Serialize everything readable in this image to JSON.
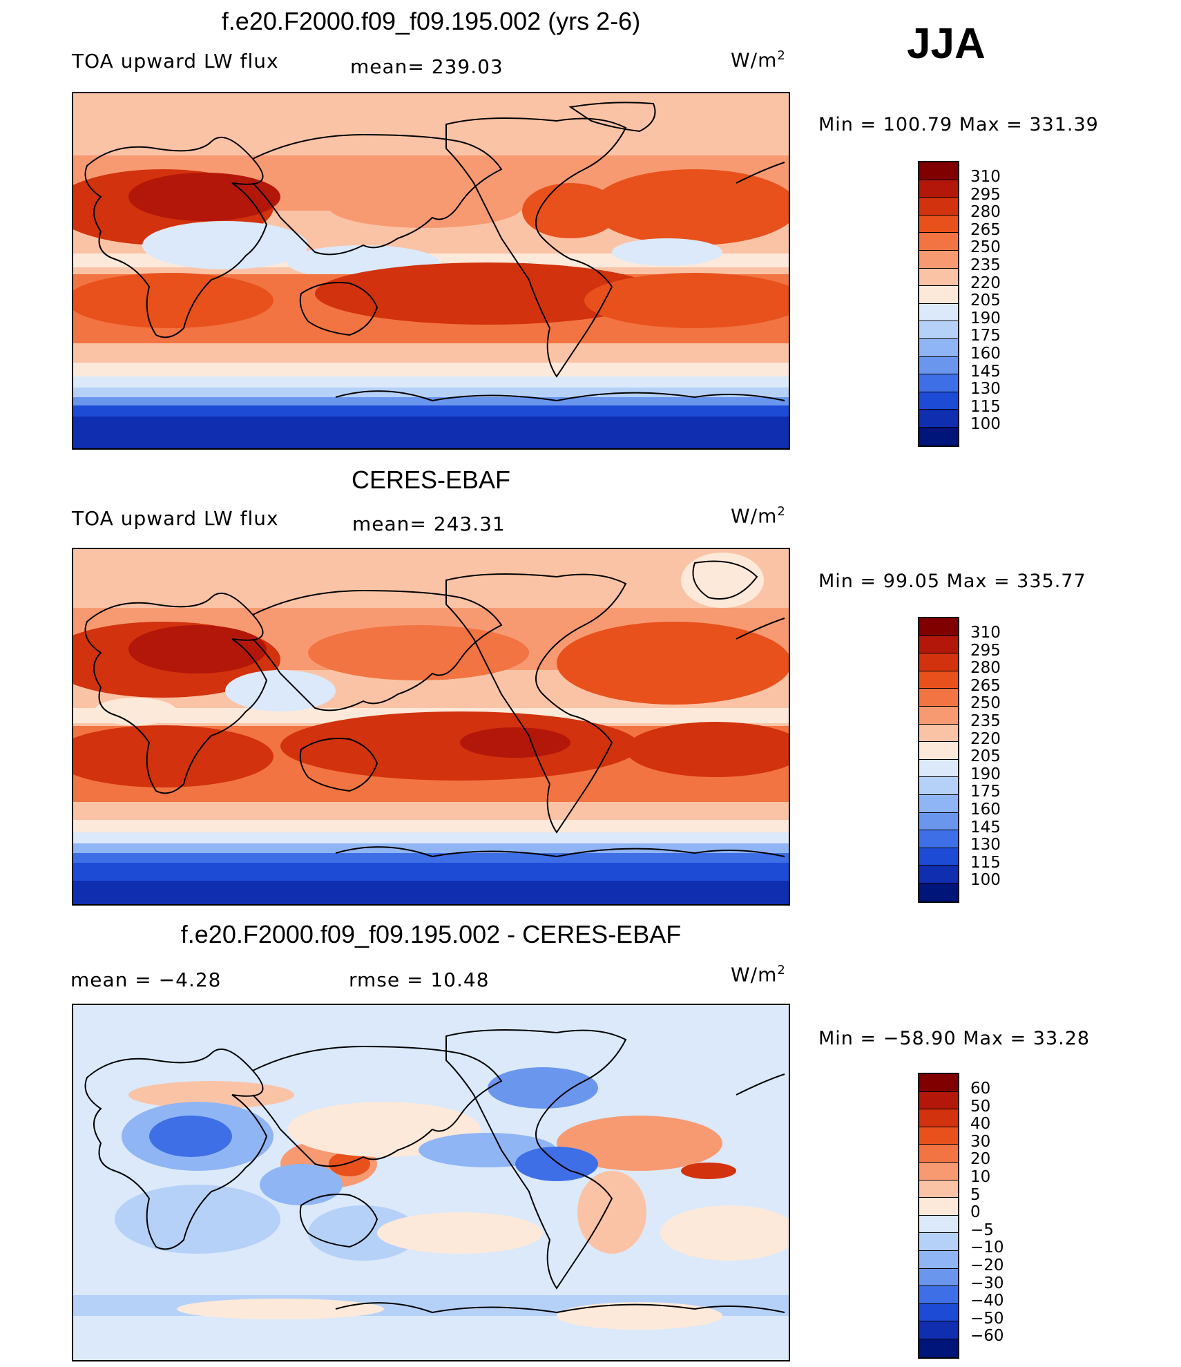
{
  "season": "JJA",
  "panels": [
    {
      "title": "f.e20.F2000.f09_f09.195.002 (yrs 2-6)",
      "left_label": "TOA upward LW flux",
      "center_label": "mean= 239.03",
      "units_base": "W/m",
      "units_exp": "2",
      "minmax": "Min  =  100.79  Max  =  331.39",
      "colorbar_labels": [
        "310",
        "295",
        "280",
        "265",
        "250",
        "235",
        "220",
        "205",
        "190",
        "175",
        "160",
        "145",
        "130",
        "115",
        "100"
      ],
      "colorbar_colors": [
        "#800000",
        "#b3170a",
        "#d2320d",
        "#e8511c",
        "#f27442",
        "#f79a72",
        "#fbc3a6",
        "#fde9da",
        "#dbe9fb",
        "#b6d1f8",
        "#90b5f4",
        "#6a96ee",
        "#3f6fe6",
        "#1e4bd6",
        "#0f2eb0",
        "#00157a"
      ]
    },
    {
      "title": "CERES-EBAF",
      "left_label": "TOA upward LW flux",
      "center_label": "mean= 243.31",
      "units_base": "W/m",
      "units_exp": "2",
      "minmax": "Min  =   99.05  Max  =  335.77",
      "colorbar_labels": [
        "310",
        "295",
        "280",
        "265",
        "250",
        "235",
        "220",
        "205",
        "190",
        "175",
        "160",
        "145",
        "130",
        "115",
        "100"
      ],
      "colorbar_colors": [
        "#800000",
        "#b3170a",
        "#d2320d",
        "#e8511c",
        "#f27442",
        "#f79a72",
        "#fbc3a6",
        "#fde9da",
        "#dbe9fb",
        "#b6d1f8",
        "#90b5f4",
        "#6a96ee",
        "#3f6fe6",
        "#1e4bd6",
        "#0f2eb0",
        "#00157a"
      ]
    },
    {
      "title": "f.e20.F2000.f09_f09.195.002 - CERES-EBAF",
      "left_label": "mean  =    −4.28",
      "center_label": "rmse  =    10.48",
      "units_base": "W/m",
      "units_exp": "2",
      "minmax": "Min  =  −58.90  Max  =    33.28",
      "colorbar_labels": [
        "60",
        "50",
        "40",
        "30",
        "20",
        "10",
        "5",
        "0",
        "−5",
        "−10",
        "−20",
        "−30",
        "−40",
        "−50",
        "−60"
      ],
      "colorbar_colors": [
        "#800000",
        "#b3170a",
        "#d2320d",
        "#e8511c",
        "#f27442",
        "#f79a72",
        "#fbc3a6",
        "#fde9da",
        "#dbe9fb",
        "#b6d1f8",
        "#90b5f4",
        "#6a96ee",
        "#3f6fe6",
        "#1e4bd6",
        "#0f2eb0",
        "#00157a"
      ]
    }
  ]
}
